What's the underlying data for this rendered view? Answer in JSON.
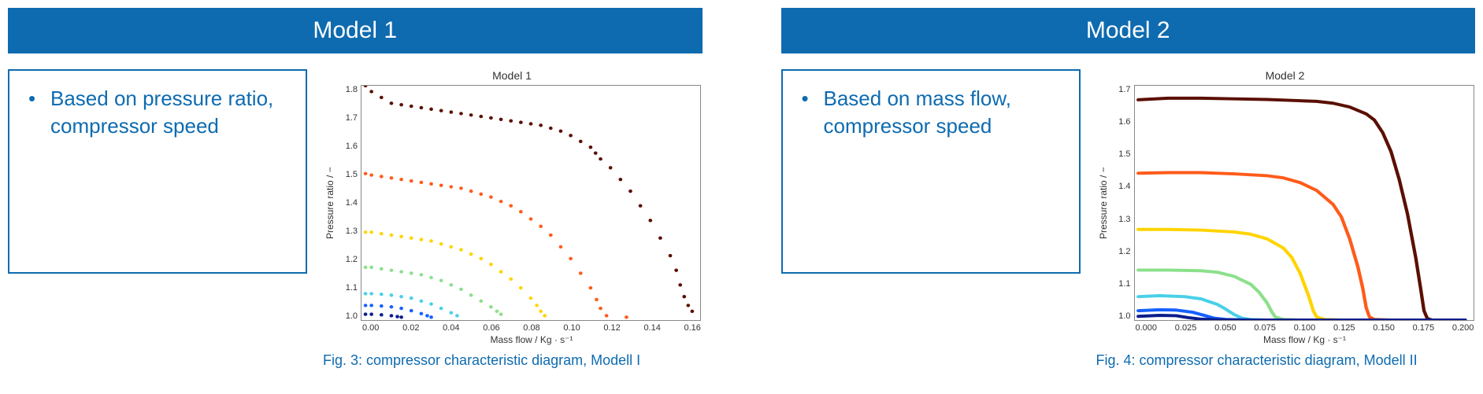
{
  "left": {
    "header": "Model 1",
    "bullet": "Based on pressure ratio, compressor speed",
    "chart": {
      "title": "Model 1",
      "ylabel": "Pressure ratio / −",
      "xlabel": "Mass flow / Kg · s⁻¹",
      "ylim": [
        1.0,
        1.8
      ],
      "yticks": [
        "1.0",
        "1.1",
        "1.2",
        "1.3",
        "1.4",
        "1.5",
        "1.6",
        "1.7",
        "1.8"
      ],
      "xlim": [
        0.0,
        0.17
      ],
      "xticks": [
        "0.00",
        "0.02",
        "0.04",
        "0.06",
        "0.08",
        "0.10",
        "0.12",
        "0.14",
        "0.16"
      ],
      "caption": "Fig. 3: compressor characteristic diagram, Modell I",
      "style": "scatter",
      "marker_radius": 2.2,
      "series": [
        {
          "color": "#5b0f00",
          "points": [
            [
              0.002,
              1.8
            ],
            [
              0.005,
              1.78
            ],
            [
              0.01,
              1.76
            ],
            [
              0.015,
              1.74
            ],
            [
              0.02,
              1.735
            ],
            [
              0.025,
              1.73
            ],
            [
              0.03,
              1.725
            ],
            [
              0.035,
              1.72
            ],
            [
              0.04,
              1.715
            ],
            [
              0.045,
              1.71
            ],
            [
              0.05,
              1.705
            ],
            [
              0.055,
              1.7
            ],
            [
              0.06,
              1.695
            ],
            [
              0.065,
              1.69
            ],
            [
              0.07,
              1.685
            ],
            [
              0.075,
              1.68
            ],
            [
              0.08,
              1.675
            ],
            [
              0.085,
              1.67
            ],
            [
              0.09,
              1.665
            ],
            [
              0.095,
              1.655
            ],
            [
              0.1,
              1.645
            ],
            [
              0.105,
              1.63
            ],
            [
              0.11,
              1.61
            ],
            [
              0.115,
              1.59
            ],
            [
              0.1175,
              1.57
            ],
            [
              0.12,
              1.55
            ],
            [
              0.125,
              1.52
            ],
            [
              0.13,
              1.48
            ],
            [
              0.135,
              1.44
            ],
            [
              0.14,
              1.39
            ],
            [
              0.145,
              1.34
            ],
            [
              0.15,
              1.28
            ],
            [
              0.155,
              1.22
            ],
            [
              0.158,
              1.17
            ],
            [
              0.16,
              1.12
            ],
            [
              0.162,
              1.08
            ],
            [
              0.164,
              1.05
            ],
            [
              0.166,
              1.03
            ]
          ]
        },
        {
          "color": "#ff5b1a",
          "points": [
            [
              0.002,
              1.5
            ],
            [
              0.005,
              1.495
            ],
            [
              0.01,
              1.49
            ],
            [
              0.015,
              1.485
            ],
            [
              0.02,
              1.48
            ],
            [
              0.025,
              1.475
            ],
            [
              0.03,
              1.47
            ],
            [
              0.035,
              1.465
            ],
            [
              0.04,
              1.46
            ],
            [
              0.045,
              1.455
            ],
            [
              0.05,
              1.45
            ],
            [
              0.055,
              1.44
            ],
            [
              0.06,
              1.43
            ],
            [
              0.065,
              1.42
            ],
            [
              0.07,
              1.405
            ],
            [
              0.075,
              1.39
            ],
            [
              0.08,
              1.37
            ],
            [
              0.085,
              1.345
            ],
            [
              0.09,
              1.32
            ],
            [
              0.095,
              1.29
            ],
            [
              0.1,
              1.25
            ],
            [
              0.105,
              1.21
            ],
            [
              0.11,
              1.16
            ],
            [
              0.115,
              1.11
            ],
            [
              0.118,
              1.07
            ],
            [
              0.12,
              1.04
            ],
            [
              0.123,
              1.015
            ],
            [
              0.133,
              1.01
            ]
          ]
        },
        {
          "color": "#ffd400",
          "points": [
            [
              0.002,
              1.3
            ],
            [
              0.005,
              1.3
            ],
            [
              0.01,
              1.295
            ],
            [
              0.015,
              1.29
            ],
            [
              0.02,
              1.285
            ],
            [
              0.025,
              1.28
            ],
            [
              0.03,
              1.275
            ],
            [
              0.035,
              1.27
            ],
            [
              0.04,
              1.26
            ],
            [
              0.045,
              1.25
            ],
            [
              0.05,
              1.24
            ],
            [
              0.055,
              1.225
            ],
            [
              0.06,
              1.21
            ],
            [
              0.065,
              1.19
            ],
            [
              0.07,
              1.165
            ],
            [
              0.075,
              1.14
            ],
            [
              0.08,
              1.11
            ],
            [
              0.085,
              1.075
            ],
            [
              0.088,
              1.05
            ],
            [
              0.09,
              1.03
            ],
            [
              0.092,
              1.015
            ]
          ]
        },
        {
          "color": "#8be08b",
          "points": [
            [
              0.002,
              1.18
            ],
            [
              0.005,
              1.18
            ],
            [
              0.01,
              1.175
            ],
            [
              0.015,
              1.17
            ],
            [
              0.02,
              1.165
            ],
            [
              0.025,
              1.16
            ],
            [
              0.03,
              1.155
            ],
            [
              0.035,
              1.145
            ],
            [
              0.04,
              1.135
            ],
            [
              0.045,
              1.12
            ],
            [
              0.05,
              1.105
            ],
            [
              0.055,
              1.085
            ],
            [
              0.06,
              1.065
            ],
            [
              0.065,
              1.045
            ],
            [
              0.068,
              1.03
            ],
            [
              0.07,
              1.02
            ]
          ]
        },
        {
          "color": "#49d0e8",
          "points": [
            [
              0.002,
              1.09
            ],
            [
              0.005,
              1.09
            ],
            [
              0.01,
              1.088
            ],
            [
              0.015,
              1.085
            ],
            [
              0.02,
              1.08
            ],
            [
              0.025,
              1.075
            ],
            [
              0.03,
              1.065
            ],
            [
              0.035,
              1.055
            ],
            [
              0.04,
              1.04
            ],
            [
              0.045,
              1.025
            ],
            [
              0.048,
              1.015
            ]
          ]
        },
        {
          "color": "#1560ff",
          "points": [
            [
              0.002,
              1.05
            ],
            [
              0.005,
              1.05
            ],
            [
              0.01,
              1.048
            ],
            [
              0.015,
              1.045
            ],
            [
              0.02,
              1.04
            ],
            [
              0.025,
              1.032
            ],
            [
              0.03,
              1.022
            ],
            [
              0.033,
              1.015
            ],
            [
              0.035,
              1.01
            ]
          ]
        },
        {
          "color": "#0b1d8c",
          "points": [
            [
              0.002,
              1.02
            ],
            [
              0.005,
              1.02
            ],
            [
              0.01,
              1.018
            ],
            [
              0.015,
              1.015
            ],
            [
              0.018,
              1.012
            ],
            [
              0.02,
              1.01
            ]
          ]
        }
      ]
    }
  },
  "right": {
    "header": "Model 2",
    "bullet": "Based on mass flow, compressor speed",
    "chart": {
      "title": "Model 2",
      "ylabel": "Pressure ratio / −",
      "xlabel": "Mass flow / Kg · s⁻¹",
      "ylim": [
        1.0,
        1.75
      ],
      "yticks": [
        "1.0",
        "1.1",
        "1.2",
        "1.3",
        "1.4",
        "1.5",
        "1.6",
        "1.7"
      ],
      "xlim": [
        0.0,
        0.205
      ],
      "xticks": [
        "0.000",
        "0.025",
        "0.050",
        "0.075",
        "0.100",
        "0.125",
        "0.150",
        "0.175",
        "0.200"
      ],
      "caption": "Fig. 4: compressor characteristic diagram, Modell II",
      "style": "line",
      "line_width": 4,
      "series": [
        {
          "color": "#5b0f00",
          "points": [
            [
              0.002,
              1.705
            ],
            [
              0.02,
              1.71
            ],
            [
              0.04,
              1.71
            ],
            [
              0.06,
              1.708
            ],
            [
              0.08,
              1.706
            ],
            [
              0.1,
              1.702
            ],
            [
              0.11,
              1.7
            ],
            [
              0.12,
              1.694
            ],
            [
              0.13,
              1.682
            ],
            [
              0.14,
              1.66
            ],
            [
              0.145,
              1.64
            ],
            [
              0.15,
              1.6
            ],
            [
              0.155,
              1.54
            ],
            [
              0.16,
              1.45
            ],
            [
              0.165,
              1.34
            ],
            [
              0.17,
              1.2
            ],
            [
              0.173,
              1.1
            ],
            [
              0.175,
              1.03
            ],
            [
              0.177,
              1.005
            ],
            [
              0.18,
              1.0
            ],
            [
              0.19,
              1.0
            ],
            [
              0.2,
              1.0
            ]
          ]
        },
        {
          "color": "#ff5b1a",
          "points": [
            [
              0.002,
              1.47
            ],
            [
              0.02,
              1.472
            ],
            [
              0.04,
              1.472
            ],
            [
              0.06,
              1.468
            ],
            [
              0.08,
              1.462
            ],
            [
              0.09,
              1.455
            ],
            [
              0.1,
              1.44
            ],
            [
              0.11,
              1.415
            ],
            [
              0.12,
              1.37
            ],
            [
              0.125,
              1.33
            ],
            [
              0.13,
              1.26
            ],
            [
              0.135,
              1.17
            ],
            [
              0.138,
              1.1
            ],
            [
              0.14,
              1.04
            ],
            [
              0.142,
              1.01
            ],
            [
              0.145,
              1.002
            ],
            [
              0.155,
              1.0
            ],
            [
              0.17,
              1.0
            ],
            [
              0.2,
              1.0
            ]
          ]
        },
        {
          "color": "#ffd400",
          "points": [
            [
              0.002,
              1.29
            ],
            [
              0.02,
              1.29
            ],
            [
              0.04,
              1.288
            ],
            [
              0.06,
              1.282
            ],
            [
              0.07,
              1.275
            ],
            [
              0.08,
              1.26
            ],
            [
              0.09,
              1.23
            ],
            [
              0.095,
              1.2
            ],
            [
              0.1,
              1.15
            ],
            [
              0.105,
              1.08
            ],
            [
              0.108,
              1.03
            ],
            [
              0.11,
              1.01
            ],
            [
              0.115,
              1.002
            ],
            [
              0.125,
              1.0
            ],
            [
              0.15,
              1.0
            ],
            [
              0.2,
              1.0
            ]
          ]
        },
        {
          "color": "#8be08b",
          "points": [
            [
              0.002,
              1.16
            ],
            [
              0.02,
              1.16
            ],
            [
              0.04,
              1.158
            ],
            [
              0.05,
              1.153
            ],
            [
              0.06,
              1.14
            ],
            [
              0.07,
              1.115
            ],
            [
              0.075,
              1.09
            ],
            [
              0.08,
              1.055
            ],
            [
              0.083,
              1.025
            ],
            [
              0.085,
              1.01
            ],
            [
              0.09,
              1.002
            ],
            [
              0.1,
              1.0
            ],
            [
              0.15,
              1.0
            ],
            [
              0.2,
              1.0
            ]
          ]
        },
        {
          "color": "#49d0e8",
          "points": [
            [
              0.002,
              1.075
            ],
            [
              0.015,
              1.078
            ],
            [
              0.03,
              1.075
            ],
            [
              0.04,
              1.068
            ],
            [
              0.05,
              1.05
            ],
            [
              0.055,
              1.035
            ],
            [
              0.06,
              1.018
            ],
            [
              0.065,
              1.006
            ],
            [
              0.07,
              1.002
            ],
            [
              0.08,
              1.0
            ],
            [
              0.12,
              1.0
            ],
            [
              0.2,
              1.0
            ]
          ]
        },
        {
          "color": "#1560ff",
          "points": [
            [
              0.002,
              1.03
            ],
            [
              0.015,
              1.033
            ],
            [
              0.025,
              1.032
            ],
            [
              0.035,
              1.025
            ],
            [
              0.042,
              1.015
            ],
            [
              0.048,
              1.006
            ],
            [
              0.055,
              1.002
            ],
            [
              0.07,
              1.0
            ],
            [
              0.12,
              1.0
            ],
            [
              0.2,
              1.0
            ]
          ]
        },
        {
          "color": "#0b1d8c",
          "points": [
            [
              0.002,
              1.012
            ],
            [
              0.015,
              1.015
            ],
            [
              0.025,
              1.014
            ],
            [
              0.032,
              1.008
            ],
            [
              0.04,
              1.003
            ],
            [
              0.05,
              1.001
            ],
            [
              0.07,
              1.0
            ],
            [
              0.12,
              1.0
            ],
            [
              0.2,
              1.0
            ]
          ]
        }
      ]
    }
  }
}
